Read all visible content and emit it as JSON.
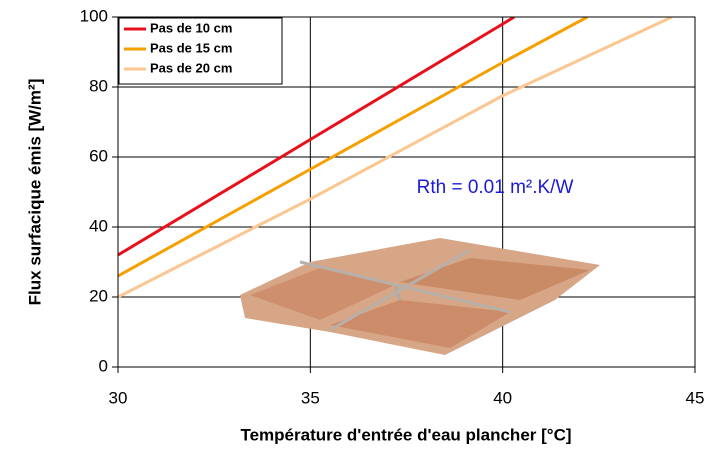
{
  "chart_data": {
    "type": "line",
    "x_label": "Température d'entrée d'eau plancher [°C]",
    "y_label": "Flux surfacique émis [W/m²]",
    "annotation": "Rth = 0.01 m².K/W",
    "xlim": [
      30,
      45
    ],
    "xticks": [
      30,
      35,
      40,
      45
    ],
    "ylim": [
      0,
      100
    ],
    "yticks": [
      0,
      20,
      40,
      60,
      80,
      100
    ],
    "grid": true,
    "legend": "upper left",
    "series": [
      {
        "name": "Pas de 10 cm",
        "color": "#e8101a",
        "x": [
          30,
          35,
          40,
          40.3
        ],
        "values": [
          32,
          65,
          98,
          100
        ]
      },
      {
        "name": "Pas de 15 cm",
        "color": "#f5a000",
        "x": [
          30,
          35,
          40,
          42.2
        ],
        "values": [
          26,
          56.5,
          87,
          100
        ]
      },
      {
        "name": "Pas de 20 cm",
        "color": "#fcc690",
        "x": [
          30,
          35,
          40,
          44.4
        ],
        "values": [
          20,
          48,
          77.5,
          100
        ]
      }
    ]
  }
}
